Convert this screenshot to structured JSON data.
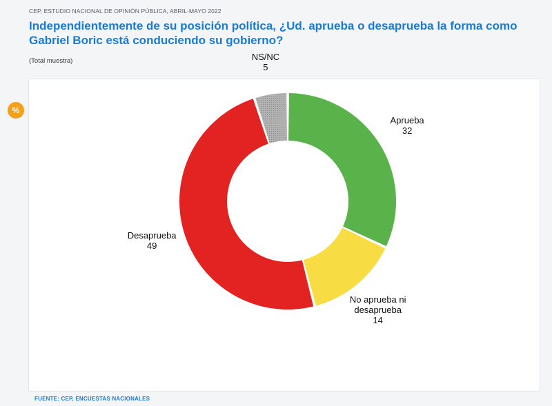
{
  "header": {
    "kicker": "CEP, ESTUDIO NACIONAL DE OPINIÓN PÚBLICA, ABRIL-MAYO 2022",
    "title": "Independientemente de su posición política, ¿Ud. aprueba o desaprueba la forma como Gabriel Boric está conduciendo su gobierno?",
    "subtitle": "(Total muestra)"
  },
  "badge": {
    "text": "%",
    "icon": "percent-icon",
    "color": "#f5a01a"
  },
  "footer": {
    "source": "FUENTE: CEP, ENCUESTAS NACIONALES"
  },
  "chart_data": {
    "type": "pie",
    "variant": "donut",
    "title": "Independientemente de su posición política, ¿Ud. aprueba o desaprueba la forma como Gabriel Boric está conduciendo su gobierno?",
    "unit": "%",
    "slices": [
      {
        "label": "Aprueba",
        "label_lines": [
          "Aprueba"
        ],
        "value": 32,
        "color": "#5ab34a"
      },
      {
        "label": "No aprueba ni desaprueba",
        "label_lines": [
          "No aprueba ni",
          "desaprueba"
        ],
        "value": 14,
        "color": "#f8dc44"
      },
      {
        "label": "Desaprueba",
        "label_lines": [
          "Desaprueba"
        ],
        "value": 49,
        "color": "#e32222"
      },
      {
        "label": "NS/NC",
        "label_lines": [
          "NS/NC"
        ],
        "value": 5,
        "color": "#a9a9a9",
        "pattern": "dotted"
      }
    ]
  }
}
